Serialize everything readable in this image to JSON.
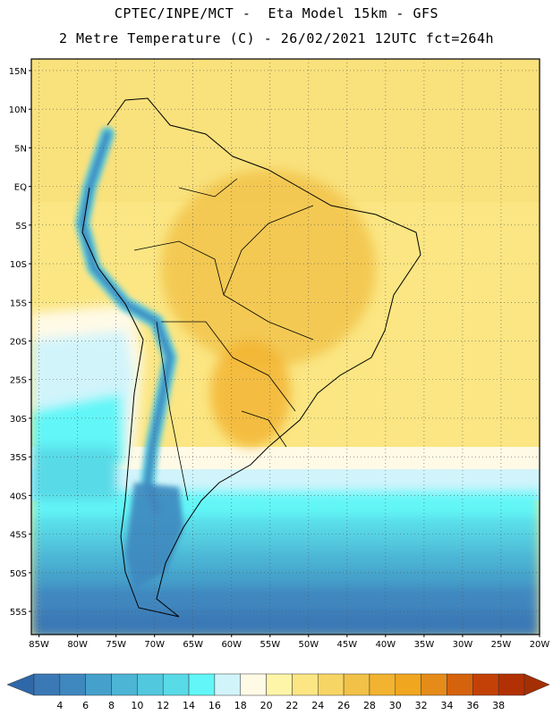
{
  "header": {
    "title_line1": "CPTEC/INPE/MCT -  Eta Model 15km - GFS",
    "title_line2": "2 Metre Temperature (C) - 26/02/2021 12UTC fct=264h"
  },
  "map": {
    "lat_labels": [
      "15N",
      "10N",
      "5N",
      "EQ",
      "5S",
      "10S",
      "15S",
      "20S",
      "25S",
      "30S",
      "35S",
      "40S",
      "45S",
      "50S",
      "55S"
    ],
    "lon_labels": [
      "85W",
      "80W",
      "75W",
      "70W",
      "65W",
      "60W",
      "55W",
      "50W",
      "45W",
      "40W",
      "35W",
      "30W",
      "25W",
      "20W"
    ],
    "lat_extent": [
      -58,
      16.5
    ],
    "lon_extent": [
      -86,
      -20
    ]
  },
  "colorbar": {
    "labels": [
      "4",
      "6",
      "8",
      "10",
      "12",
      "14",
      "16",
      "18",
      "20",
      "22",
      "24",
      "26",
      "28",
      "30",
      "32",
      "34",
      "36",
      "38"
    ],
    "colors": [
      "#3a79b6",
      "#3f87bf",
      "#45a1cb",
      "#4cb4d4",
      "#52c8de",
      "#59dae7",
      "#62f6f8",
      "#d1f4fb",
      "#fffae6",
      "#fff5a8",
      "#fbe683",
      "#f7d564",
      "#f1c247",
      "#f2b330",
      "#f0a61f",
      "#e58b1a",
      "#d5620d",
      "#c34107",
      "#b23104"
    ],
    "under_color": "#2e68a8",
    "over_color": "#a42f04"
  }
}
